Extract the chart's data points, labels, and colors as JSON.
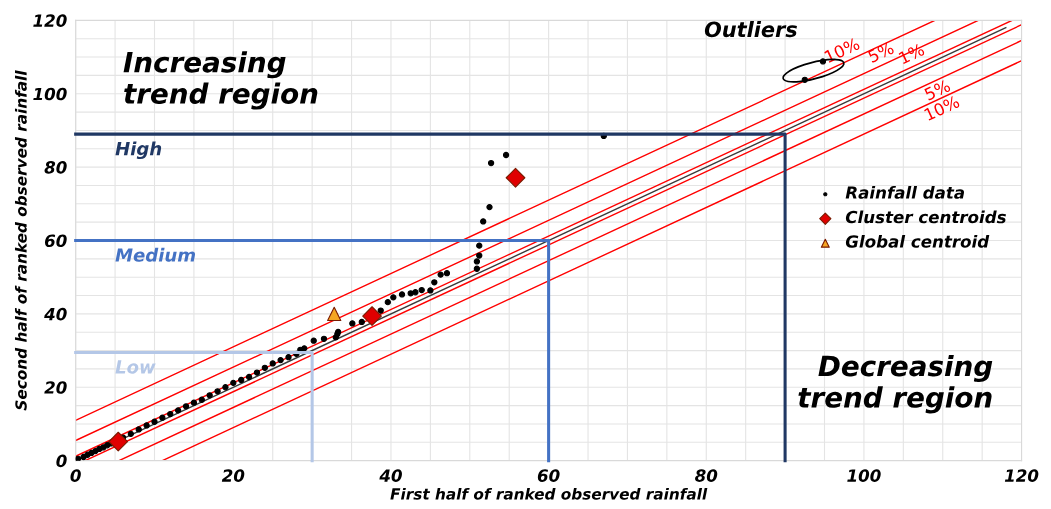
{
  "chart_data": {
    "type": "scatter",
    "xlabel": "First half of ranked observed rainfall",
    "ylabel": "Second half of ranked observed rainfall",
    "xlim": [
      0,
      120
    ],
    "ylim": [
      0,
      120
    ],
    "xticks": [
      0,
      {
        "value": 5,
        "label": null
      },
      {
        "value": 10,
        "label": null
      },
      {
        "value": 15,
        "label": null
      },
      20,
      {
        "value": 25,
        "label": null
      },
      {
        "value": 30,
        "label": null
      },
      {
        "value": 35,
        "label": null
      },
      40,
      {
        "value": 45,
        "label": null
      },
      {
        "value": 50,
        "label": null
      },
      {
        "value": 55,
        "label": null
      },
      60,
      {
        "value": 65,
        "label": null
      },
      {
        "value": 70,
        "label": null
      },
      {
        "value": 75,
        "label": null
      },
      80,
      {
        "value": 85,
        "label": null
      },
      {
        "value": 90,
        "label": null
      },
      {
        "value": 95,
        "label": null
      },
      100,
      {
        "value": 105,
        "label": null
      },
      {
        "value": 110,
        "label": null
      },
      {
        "value": 115,
        "label": null
      },
      120
    ],
    "yticks": [
      0,
      {
        "value": 5,
        "label": null
      },
      {
        "value": 10,
        "label": null
      },
      {
        "value": 15,
        "label": null
      },
      20,
      {
        "value": 25,
        "label": null
      },
      {
        "value": 30,
        "label": null
      },
      {
        "value": 35,
        "label": null
      },
      40,
      {
        "value": 45,
        "label": null
      },
      {
        "value": 50,
        "label": null
      },
      {
        "value": 55,
        "label": null
      },
      60,
      {
        "value": 65,
        "label": null
      },
      {
        "value": 70,
        "label": null
      },
      {
        "value": 75,
        "label": null
      },
      80,
      {
        "value": 85,
        "label": null
      },
      {
        "value": 90,
        "label": null
      },
      {
        "value": 95,
        "label": null
      },
      100,
      {
        "value": 105,
        "label": null
      },
      {
        "value": 110,
        "label": null
      },
      {
        "value": 115,
        "label": null
      },
      120
    ],
    "grid": true,
    "legend": "right",
    "annotations": [
      "Increasing\ntrend region",
      "Decreasing\ntrend region",
      {
        "text": "Outliers",
        "x": 93.6,
        "y": 106.3
      }
    ],
    "series": [
      {
        "name": "High",
        "type": "line",
        "color": "#203864",
        "x": [
          0,
          90,
          90
        ],
        "values": [
          89,
          89,
          0
        ]
      },
      {
        "name": "Medium",
        "type": "line",
        "color": "#4472c4",
        "x": [
          0,
          60,
          60
        ],
        "values": [
          60,
          60,
          0
        ]
      },
      {
        "name": "Low",
        "type": "line",
        "color": "#b4c7e7",
        "x": [
          0,
          30,
          30
        ],
        "values": [
          29.5,
          29.5,
          0
        ]
      },
      {
        "name": "10%",
        "type": "line",
        "color": "#ff0000",
        "x": [
          0,
          109
        ],
        "values": [
          11,
          120
        ]
      },
      {
        "name": "5%",
        "type": "line",
        "color": "#ff0000",
        "x": [
          0,
          114.5
        ],
        "values": [
          5.5,
          120
        ]
      },
      {
        "name": "1%",
        "type": "line",
        "color": "#ff0000",
        "x": [
          0,
          118.8
        ],
        "values": [
          1.2,
          120
        ]
      },
      {
        "type": "line",
        "color": "#3a3a3a",
        "x": [
          0,
          118
        ],
        "values": [
          0,
          118
        ]
      },
      {
        "type": "line",
        "color": "#ff0000",
        "x": [
          1.2,
          120
        ],
        "values": [
          0,
          118.8
        ]
      },
      {
        "name": "5%",
        "type": "line",
        "color": "#ff0000",
        "x": [
          5.5,
          120
        ],
        "values": [
          0,
          114.5
        ]
      },
      {
        "name": "10%",
        "type": "line",
        "color": "#ff0000",
        "x": [
          11,
          120
        ],
        "values": [
          0,
          109
        ]
      },
      {
        "name": "Rainfall data",
        "marker": "circle",
        "color": "#000000",
        "x": [
          0.3,
          1,
          1.5,
          2,
          2.5,
          3,
          3.5,
          4,
          4.5,
          6,
          7,
          8,
          9,
          10,
          11,
          12,
          13,
          14,
          15,
          16,
          17,
          18,
          19,
          20,
          21,
          22,
          23,
          24,
          25,
          26,
          27,
          28,
          28.5,
          29,
          30.2,
          31.5,
          33,
          33.2,
          33.3,
          35.1,
          36.3,
          38.7,
          39.6,
          40.3,
          41.4,
          42.5,
          43.1,
          43.9,
          45,
          45.5,
          46.3,
          47.1,
          50.9,
          50.9,
          51.2,
          51.2,
          51.7,
          52.5,
          52.7,
          54.6,
          67,
          92.5,
          94.8
        ],
        "values": [
          0.5,
          1,
          1.6,
          2.1,
          2.6,
          3.2,
          3.6,
          4.2,
          4.7,
          6.3,
          7.3,
          8.5,
          9.6,
          10.6,
          11.7,
          12.7,
          13.7,
          14.8,
          15.8,
          16.6,
          17.8,
          18.9,
          20,
          21.2,
          22,
          22.8,
          24,
          25.3,
          26.5,
          27.4,
          28.2,
          29.1,
          30.2,
          30.6,
          32.7,
          33.2,
          33.6,
          34.5,
          35.1,
          37.4,
          37.8,
          40.9,
          43.2,
          44.5,
          45.3,
          45.6,
          45.9,
          46.5,
          46.4,
          48.6,
          50.7,
          51.1,
          52.3,
          54.3,
          55.9,
          58.6,
          65.2,
          69.1,
          81.1,
          83.3,
          88.5,
          103.8,
          108.8
        ]
      },
      {
        "name": "Cluster centroids",
        "marker": "diamond",
        "color": "#e00000",
        "x": [
          5.4,
          37.6,
          55.8
        ],
        "values": [
          5.2,
          39.4,
          77.1
        ]
      },
      {
        "name": "Global centroid",
        "marker": "triangle",
        "color": "#f5a623",
        "x": [
          32.8
        ],
        "values": [
          40
        ]
      }
    ]
  }
}
